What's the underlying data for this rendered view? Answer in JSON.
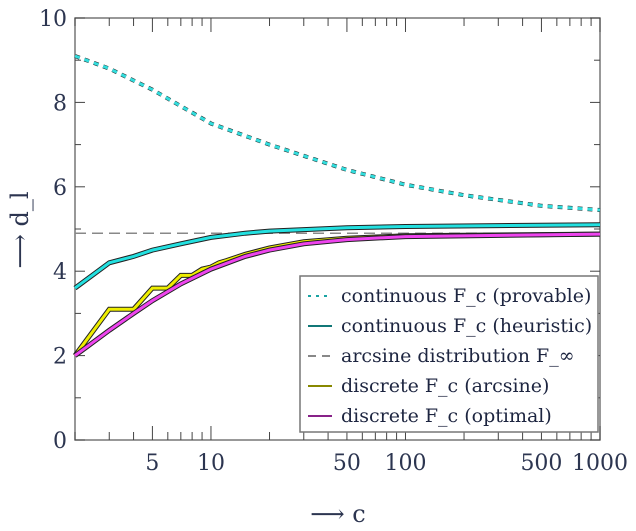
{
  "chart_data": {
    "type": "line",
    "xscale": "log",
    "xlim": [
      2,
      1000
    ],
    "ylim": [
      0,
      10
    ],
    "xlabel": "⟶ c",
    "ylabel": "⟶ d_l",
    "xticks": [
      5,
      10,
      50,
      100,
      500,
      1000
    ],
    "yticks": [
      0,
      2,
      4,
      6,
      8,
      10
    ],
    "grid": false,
    "legend_placement": "bottom-right",
    "series": [
      {
        "name": "continuous F_c (provable)",
        "style": "dotted",
        "color": "#33dddd",
        "legend_color": "#1aa3a3",
        "x": [
          2,
          3,
          5,
          10,
          20,
          50,
          100,
          200,
          500,
          1000
        ],
        "y": [
          9.1,
          8.8,
          8.3,
          7.5,
          7.0,
          6.4,
          6.05,
          5.8,
          5.55,
          5.45
        ]
      },
      {
        "name": "continuous F_c (heuristic)",
        "style": "solid",
        "color": "#22e0e0",
        "legend_color": "#117777",
        "x": [
          2,
          3,
          4,
          5,
          7,
          10,
          15,
          20,
          50,
          100,
          300,
          1000
        ],
        "y": [
          3.6,
          4.2,
          4.35,
          4.5,
          4.65,
          4.8,
          4.9,
          4.95,
          5.03,
          5.06,
          5.08,
          5.1
        ]
      },
      {
        "name": "arcsine distribution F_∞",
        "style": "dashed",
        "color": "#888888",
        "legend_color": "#888888",
        "x": [
          2,
          1000
        ],
        "y": [
          4.9,
          4.9
        ]
      },
      {
        "name": "discrete F_c (arcsine)",
        "style": "solid",
        "color": "#eeee00",
        "legend_color": "#888800",
        "x": [
          2,
          3,
          4,
          5,
          6,
          7,
          8,
          9,
          10,
          11,
          12,
          15,
          20,
          30,
          50,
          100,
          1000
        ],
        "y": [
          2.0,
          3.1,
          3.1,
          3.6,
          3.6,
          3.9,
          3.9,
          4.05,
          4.1,
          4.2,
          4.25,
          4.4,
          4.55,
          4.7,
          4.78,
          4.84,
          4.88
        ]
      },
      {
        "name": "discrete F_c (optimal)",
        "style": "solid",
        "color": "#ee44ee",
        "legend_color": "#882288",
        "x": [
          2,
          3,
          4,
          5,
          7,
          10,
          15,
          20,
          30,
          50,
          100,
          1000
        ],
        "y": [
          2.0,
          2.6,
          3.0,
          3.3,
          3.7,
          4.05,
          4.35,
          4.5,
          4.65,
          4.75,
          4.82,
          4.88
        ]
      }
    ]
  }
}
